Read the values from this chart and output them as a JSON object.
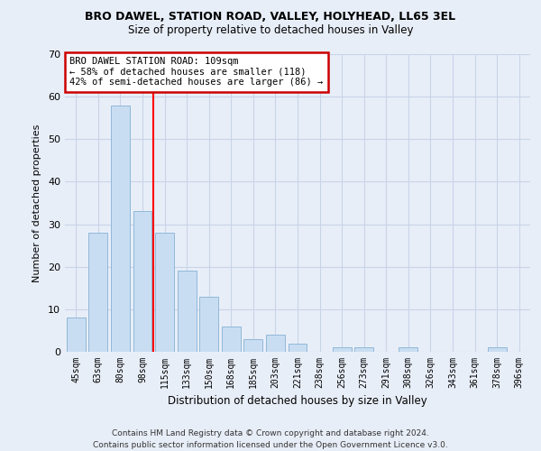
{
  "title1": "BRO DAWEL, STATION ROAD, VALLEY, HOLYHEAD, LL65 3EL",
  "title2": "Size of property relative to detached houses in Valley",
  "xlabel": "Distribution of detached houses by size in Valley",
  "ylabel": "Number of detached properties",
  "categories": [
    "45sqm",
    "63sqm",
    "80sqm",
    "98sqm",
    "115sqm",
    "133sqm",
    "150sqm",
    "168sqm",
    "185sqm",
    "203sqm",
    "221sqm",
    "238sqm",
    "256sqm",
    "273sqm",
    "291sqm",
    "308sqm",
    "326sqm",
    "343sqm",
    "361sqm",
    "378sqm",
    "396sqm"
  ],
  "values": [
    8,
    28,
    58,
    33,
    28,
    19,
    13,
    6,
    3,
    4,
    2,
    0,
    1,
    1,
    0,
    1,
    0,
    0,
    0,
    1,
    0
  ],
  "bar_color": "#c9ddf2",
  "bar_edge_color": "#90b8d8",
  "grid_color": "#c8d4e8",
  "background_color": "#e8eef8",
  "red_line_x": 3.5,
  "annotation_text": "BRO DAWEL STATION ROAD: 109sqm\n← 58% of detached houses are smaller (118)\n42% of semi-detached houses are larger (86) →",
  "annotation_box_color": "#ffffff",
  "annotation_box_edge_color": "#cc0000",
  "footer1": "Contains HM Land Registry data © Crown copyright and database right 2024.",
  "footer2": "Contains public sector information licensed under the Open Government Licence v3.0.",
  "ylim": [
    0,
    70
  ],
  "yticks": [
    0,
    10,
    20,
    30,
    40,
    50,
    60,
    70
  ]
}
